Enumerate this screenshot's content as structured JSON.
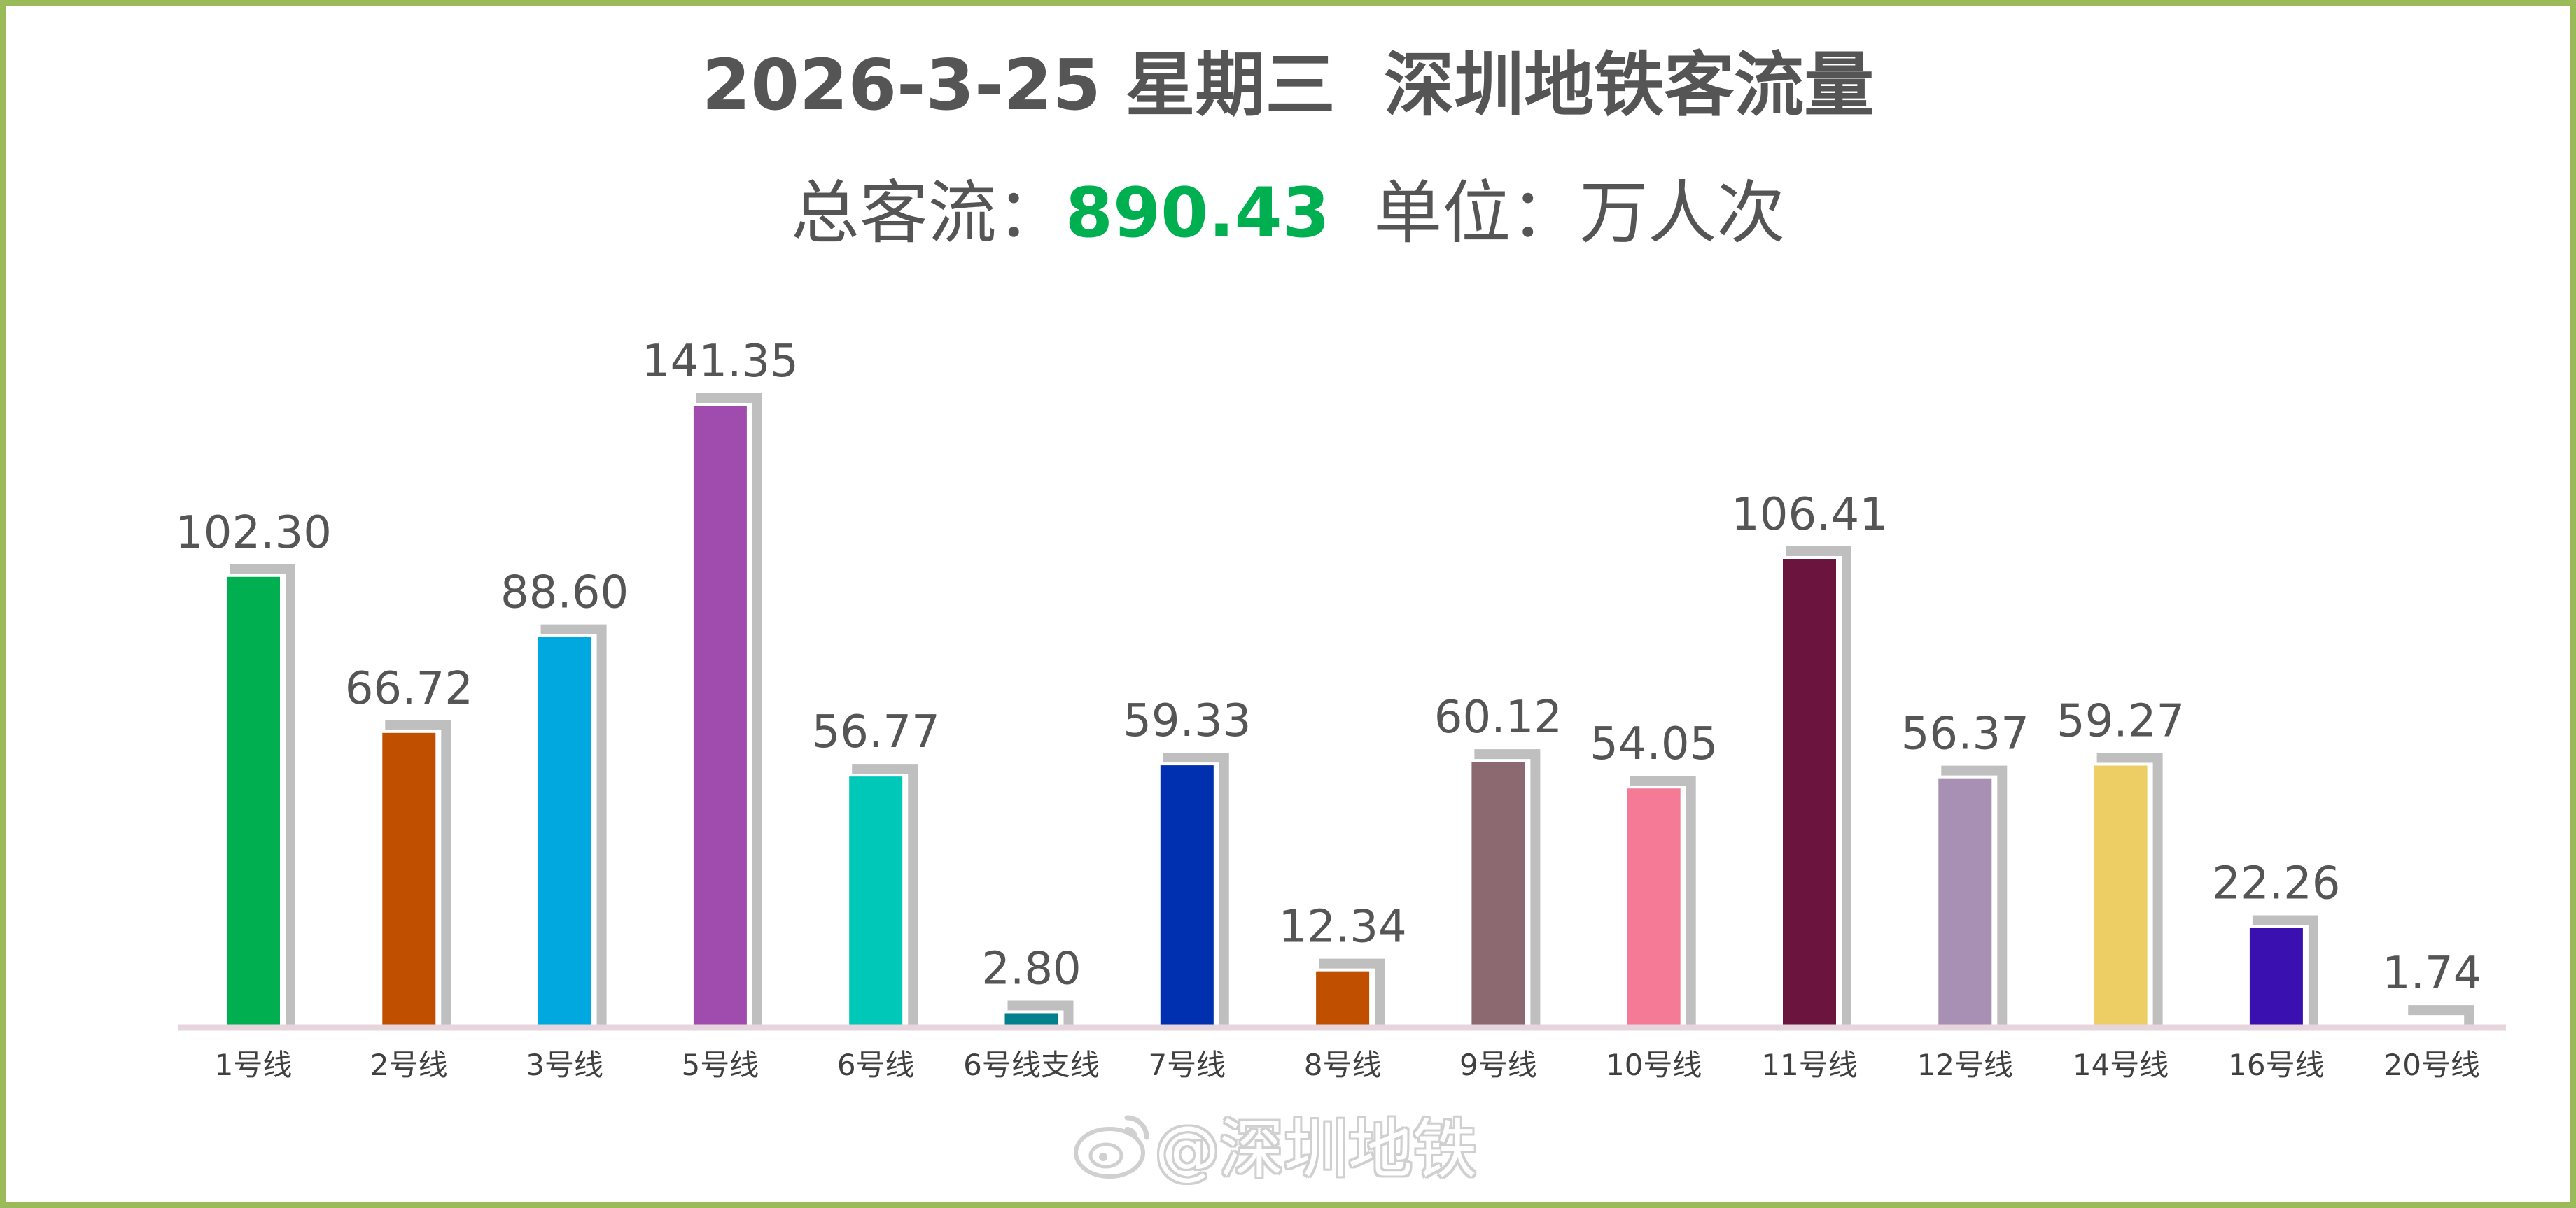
{
  "header": {
    "title": "2026-3-25 星期三  深圳地铁客流量",
    "total_label": "总客流：",
    "total_value": "890.43",
    "unit_text": "  单位：万人次"
  },
  "watermark": {
    "text": "@深圳地铁",
    "icon": "weibo-logo-icon"
  },
  "colors": {
    "frame": "#9bbb59",
    "total_value": "#00b050",
    "shadow": "#bfbfbf",
    "axis": "#e6d5dc"
  },
  "chart_data": {
    "type": "bar",
    "title": "2026-3-25 星期三  深圳地铁客流量",
    "ylim": [
      0,
      141.35
    ],
    "grid": false,
    "legend": "none",
    "categories": [
      "1号线",
      "2号线",
      "3号线",
      "5号线",
      "6号线",
      "6号线支线",
      "7号线",
      "8号线",
      "9号线",
      "10号线",
      "11号线",
      "12号线",
      "14号线",
      "16号线",
      "20号线"
    ],
    "values": [
      102.3,
      66.72,
      88.6,
      141.35,
      56.77,
      2.8,
      59.33,
      12.34,
      60.12,
      54.05,
      106.41,
      56.37,
      59.27,
      22.26,
      1.74
    ],
    "labels": [
      "102.30",
      "66.72",
      "88.60",
      "141.35",
      "56.77",
      "2.80",
      "59.33",
      "12.34",
      "60.12",
      "54.05",
      "106.41",
      "56.37",
      "59.27",
      "22.26",
      "1.74"
    ],
    "bar_colors": [
      "#00b050",
      "#c05000",
      "#00a8e0",
      "#a04cae",
      "#00c8b8",
      "#00808c",
      "#0030b0",
      "#c05000",
      "#8c6870",
      "#f47a96",
      "#6a143e",
      "#a890b4",
      "#ecce64",
      "#3a10b0",
      "#ffffff"
    ]
  }
}
